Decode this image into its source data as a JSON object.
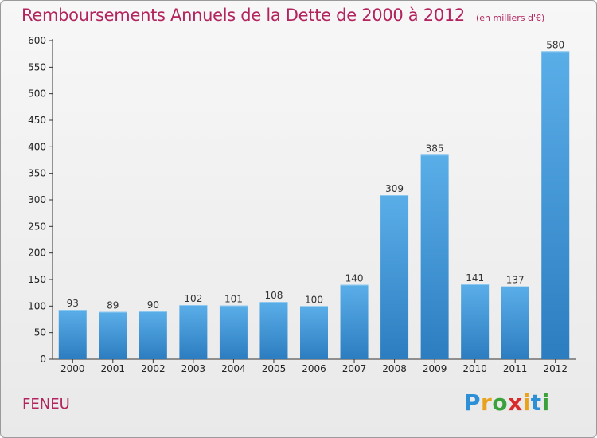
{
  "header": {
    "title": "Remboursements Annuels de la Dette de 2000 à 2012",
    "unit": "(en milliers d'€)"
  },
  "footer": {
    "commune": "FENEU",
    "brand": {
      "letters": [
        "P",
        "r",
        "o",
        "x",
        "i",
        "t",
        "i"
      ],
      "colors": [
        "#2d8fd6",
        "#e8a21c",
        "#3aa23a",
        "#d92b2b",
        "#e8a21c",
        "#2d8fd6",
        "#3aa23a"
      ]
    }
  },
  "chart_data": {
    "type": "bar",
    "categories": [
      "2000",
      "2001",
      "2002",
      "2003",
      "2004",
      "2005",
      "2006",
      "2007",
      "2008",
      "2009",
      "2010",
      "2011",
      "2012"
    ],
    "values": [
      93,
      89,
      90,
      102,
      101,
      108,
      100,
      140,
      309,
      385,
      141,
      137,
      580
    ],
    "data_labels": [
      "93",
      "89",
      "90",
      "102",
      "101",
      "108",
      "100",
      "140",
      "309",
      "385",
      "141",
      "137",
      "580"
    ],
    "title": "Remboursements Annuels de la Dette de 2000 à 2012",
    "xlabel": "",
    "ylabel": "",
    "ylim": [
      0,
      600
    ],
    "yticks": [
      0,
      50,
      100,
      150,
      200,
      250,
      300,
      350,
      400,
      450,
      500,
      550,
      600
    ],
    "grid": false,
    "legend": "none",
    "bar_color": "#3d94d6"
  }
}
